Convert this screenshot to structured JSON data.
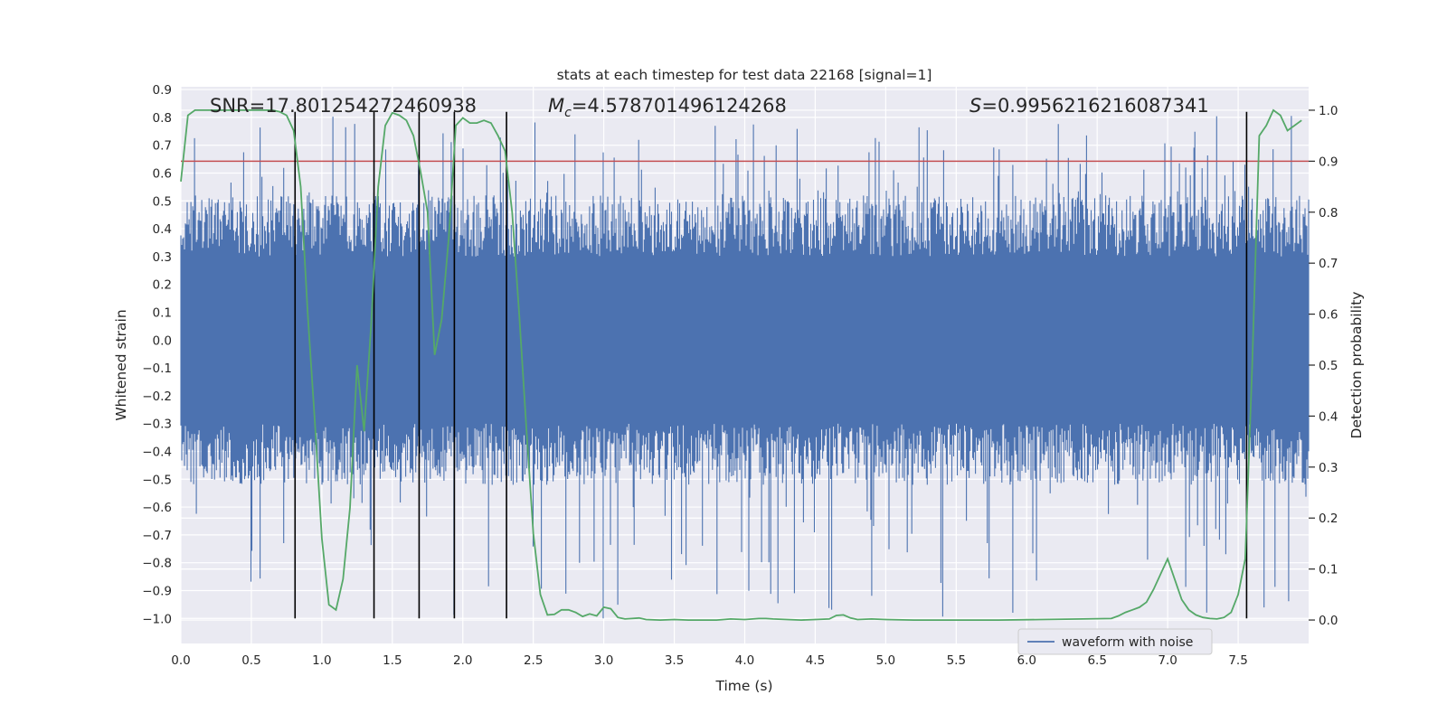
{
  "chart_data": {
    "type": "line",
    "title": "stats at each timestep for test data 22168 [signal=1]",
    "xlabel": "Time (s)",
    "ylabel_left": "Whitened strain",
    "ylabel_right": "Detection probability",
    "xlim": [
      0.0,
      8.0
    ],
    "ylim_left": [
      -1.09,
      0.91
    ],
    "ylim_right": [
      -0.046,
      1.046
    ],
    "x_ticks": [
      "0.0",
      "0.5",
      "1.0",
      "1.5",
      "2.0",
      "2.5",
      "3.0",
      "3.5",
      "4.0",
      "4.5",
      "5.0",
      "5.5",
      "6.0",
      "6.5",
      "7.0",
      "7.5"
    ],
    "x_tick_values": [
      0.0,
      0.5,
      1.0,
      1.5,
      2.0,
      2.5,
      3.0,
      3.5,
      4.0,
      4.5,
      5.0,
      5.5,
      6.0,
      6.5,
      7.0,
      7.5
    ],
    "y_left_ticks": [
      "0.9",
      "0.8",
      "0.7",
      "0.6",
      "0.5",
      "0.4",
      "0.3",
      "0.2",
      "0.1",
      "0.0",
      "−0.1",
      "−0.2",
      "−0.3",
      "−0.4",
      "−0.5",
      "−0.6",
      "−0.7",
      "−0.8",
      "−0.9",
      "−1.0"
    ],
    "y_left_tick_values": [
      0.9,
      0.8,
      0.7,
      0.6,
      0.5,
      0.4,
      0.3,
      0.2,
      0.1,
      0.0,
      -0.1,
      -0.2,
      -0.3,
      -0.4,
      -0.5,
      -0.6,
      -0.7,
      -0.8,
      -0.9,
      -1.0
    ],
    "y_right_ticks": [
      "1.0",
      "0.9",
      "0.8",
      "0.7",
      "0.6",
      "0.5",
      "0.4",
      "0.3",
      "0.2",
      "0.1",
      "0.0"
    ],
    "y_right_tick_values": [
      1.0,
      0.9,
      0.8,
      0.7,
      0.6,
      0.5,
      0.4,
      0.3,
      0.2,
      0.1,
      0.0
    ],
    "grid": true,
    "annotations": {
      "snr": "SNR=17.801254272460938",
      "mc_label": "M",
      "mc_sub": "c",
      "mc_value": "=4.578701496124268",
      "s_label": "S",
      "s_value": "=0.9956216216087341"
    },
    "threshold": {
      "value": 0.9,
      "color": "#c44e52"
    },
    "vertical_markers_s": [
      0.81,
      1.37,
      1.69,
      1.94,
      2.31,
      7.56
    ],
    "marker_range": [
      -1.0,
      0.82
    ],
    "series": [
      {
        "name": "waveform with noise",
        "axis": "left",
        "color": "#4c72b0",
        "kind": "noise",
        "core_range": [
          -0.3,
          0.3
        ],
        "typical_extent": [
          -0.52,
          0.52
        ],
        "spike_extent": [
          -1.0,
          0.81
        ]
      },
      {
        "axis": "right",
        "color": "#55a868",
        "x": [
          0.0,
          0.05,
          0.1,
          0.15,
          0.2,
          0.3,
          0.4,
          0.5,
          0.6,
          0.65,
          0.7,
          0.75,
          0.8,
          0.85,
          0.9,
          0.95,
          1.0,
          1.05,
          1.1,
          1.15,
          1.2,
          1.25,
          1.3,
          1.35,
          1.4,
          1.45,
          1.5,
          1.55,
          1.6,
          1.65,
          1.7,
          1.75,
          1.8,
          1.85,
          1.9,
          1.95,
          2.0,
          2.05,
          2.1,
          2.15,
          2.2,
          2.25,
          2.3,
          2.35,
          2.4,
          2.45,
          2.5,
          2.55,
          2.6,
          2.65,
          2.7,
          2.75,
          2.8,
          2.85,
          2.9,
          2.95,
          3.0,
          3.05,
          3.1,
          3.15,
          3.2,
          3.25,
          3.3,
          3.4,
          3.5,
          3.6,
          3.7,
          3.8,
          3.9,
          4.0,
          4.1,
          4.15,
          4.2,
          4.3,
          4.4,
          4.5,
          4.6,
          4.65,
          4.7,
          4.75,
          4.8,
          4.9,
          5.0,
          5.2,
          5.5,
          5.8,
          6.1,
          6.4,
          6.6,
          6.65,
          6.7,
          6.75,
          6.8,
          6.85,
          6.9,
          6.95,
          7.0,
          7.05,
          7.1,
          7.15,
          7.2,
          7.25,
          7.3,
          7.35,
          7.4,
          7.45,
          7.5,
          7.55,
          7.6,
          7.65,
          7.7,
          7.75,
          7.8,
          7.85,
          7.9,
          7.95
        ],
        "y": [
          0.86,
          0.99,
          1.0,
          1.0,
          1.0,
          1.0,
          1.0,
          1.0,
          1.0,
          1.0,
          0.997,
          0.99,
          0.96,
          0.85,
          0.6,
          0.39,
          0.16,
          0.03,
          0.02,
          0.08,
          0.22,
          0.5,
          0.37,
          0.58,
          0.85,
          0.97,
          0.995,
          0.99,
          0.98,
          0.95,
          0.88,
          0.8,
          0.52,
          0.59,
          0.75,
          0.97,
          0.985,
          0.975,
          0.975,
          0.98,
          0.975,
          0.95,
          0.92,
          0.8,
          0.6,
          0.38,
          0.17,
          0.05,
          0.01,
          0.011,
          0.02,
          0.02,
          0.015,
          0.007,
          0.012,
          0.008,
          0.025,
          0.022,
          0.005,
          0.002,
          0.003,
          0.004,
          0.001,
          0.0,
          0.001,
          0.0,
          0.0,
          0.0,
          0.002,
          0.001,
          0.003,
          0.003,
          0.002,
          0.001,
          0.0,
          0.001,
          0.002,
          0.009,
          0.01,
          0.004,
          0.001,
          0.002,
          0.001,
          0.0,
          0.0,
          0.0,
          0.001,
          0.002,
          0.003,
          0.008,
          0.015,
          0.02,
          0.025,
          0.035,
          0.06,
          0.09,
          0.12,
          0.08,
          0.04,
          0.02,
          0.01,
          0.005,
          0.003,
          0.002,
          0.005,
          0.015,
          0.05,
          0.12,
          0.5,
          0.95,
          0.97,
          1.0,
          0.99,
          0.96,
          0.97,
          0.98
        ]
      }
    ]
  }
}
